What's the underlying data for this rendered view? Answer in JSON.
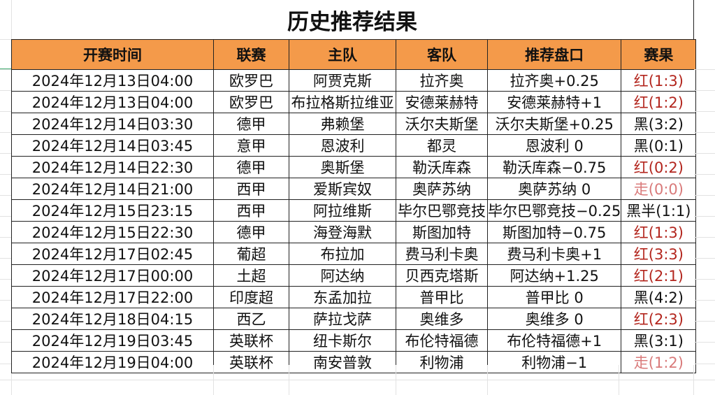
{
  "title": "历史推荐结果",
  "columns": [
    "开赛时间",
    "联赛",
    "主队",
    "客队",
    "推荐盘口",
    "赛果"
  ],
  "colors": {
    "header_bg": "#f49a4a",
    "win": "#b3261e",
    "push": "#d97a7a",
    "loss": "#111111"
  },
  "rows": [
    {
      "time": "2024年12月13日04:00",
      "league": "欧罗巴",
      "home": "阿贾克斯",
      "away": "拉齐奥",
      "pick": "拉齐奥+0.25",
      "result": "红(1:3)",
      "status": "win"
    },
    {
      "time": "2024年12月13日04:00",
      "league": "欧罗巴",
      "home": "布拉格斯拉维亚",
      "away": "安德莱赫特",
      "pick": "安德莱赫特+1",
      "result": "红(1:2)",
      "status": "win"
    },
    {
      "time": "2024年12月14日03:30",
      "league": "德甲",
      "home": "弗赖堡",
      "away": "沃尔夫斯堡",
      "pick": "沃尔夫斯堡+0.25",
      "result": "黑(3:2)",
      "status": "loss"
    },
    {
      "time": "2024年12月14日03:45",
      "league": "意甲",
      "home": "恩波利",
      "away": "都灵",
      "pick": "恩波利 0",
      "result": "黑(0:1)",
      "status": "loss"
    },
    {
      "time": "2024年12月14日22:30",
      "league": "德甲",
      "home": "奥斯堡",
      "away": "勒沃库森",
      "pick": "勒沃库森−0.75",
      "result": "红(0:2)",
      "status": "win"
    },
    {
      "time": "2024年12月14日21:00",
      "league": "西甲",
      "home": "爱斯宾奴",
      "away": "奥萨苏纳",
      "pick": "奥萨苏纳 0",
      "result": "走(0:0)",
      "status": "push"
    },
    {
      "time": "2024年12月15日23:15",
      "league": "西甲",
      "home": "阿拉维斯",
      "away": "毕尔巴鄂竞技",
      "pick": "毕尔巴鄂竞技−0.25",
      "result": "黑半(1:1)",
      "status": "loss"
    },
    {
      "time": "2024年12月15日22:30",
      "league": "德甲",
      "home": "海登海默",
      "away": "斯图加特",
      "pick": "斯图加特−0.75",
      "result": "红(1:3)",
      "status": "win"
    },
    {
      "time": "2024年12月17日02:45",
      "league": "葡超",
      "home": "布拉加",
      "away": "费马利卡奥",
      "pick": "费马利卡奥+1",
      "result": "红(3:3)",
      "status": "win"
    },
    {
      "time": "2024年12月17日00:00",
      "league": "土超",
      "home": "阿达纳",
      "away": "贝西克塔斯",
      "pick": "阿达纳+1.25",
      "result": "红(2:1)",
      "status": "win"
    },
    {
      "time": "2024年12月17日22:00",
      "league": "印度超",
      "home": "东孟加拉",
      "away": "普甲比",
      "pick": "普甲比 0",
      "result": "黑(4:2)",
      "status": "loss"
    },
    {
      "time": "2024年12月18日04:15",
      "league": "西乙",
      "home": "萨拉戈萨",
      "away": "奥维多",
      "pick": "奥维多 0",
      "result": "红(2:3)",
      "status": "win"
    },
    {
      "time": "2024年12月19日03:45",
      "league": "英联杯",
      "home": "纽卡斯尔",
      "away": "布伦特福德",
      "pick": "布伦特福德+1",
      "result": "黑(3:1)",
      "status": "loss"
    },
    {
      "time": "2024年12月19日04:00",
      "league": "英联杯",
      "home": "南安普敦",
      "away": "利物浦",
      "pick": "利物浦−1",
      "result": "走(1:2)",
      "status": "push"
    }
  ]
}
